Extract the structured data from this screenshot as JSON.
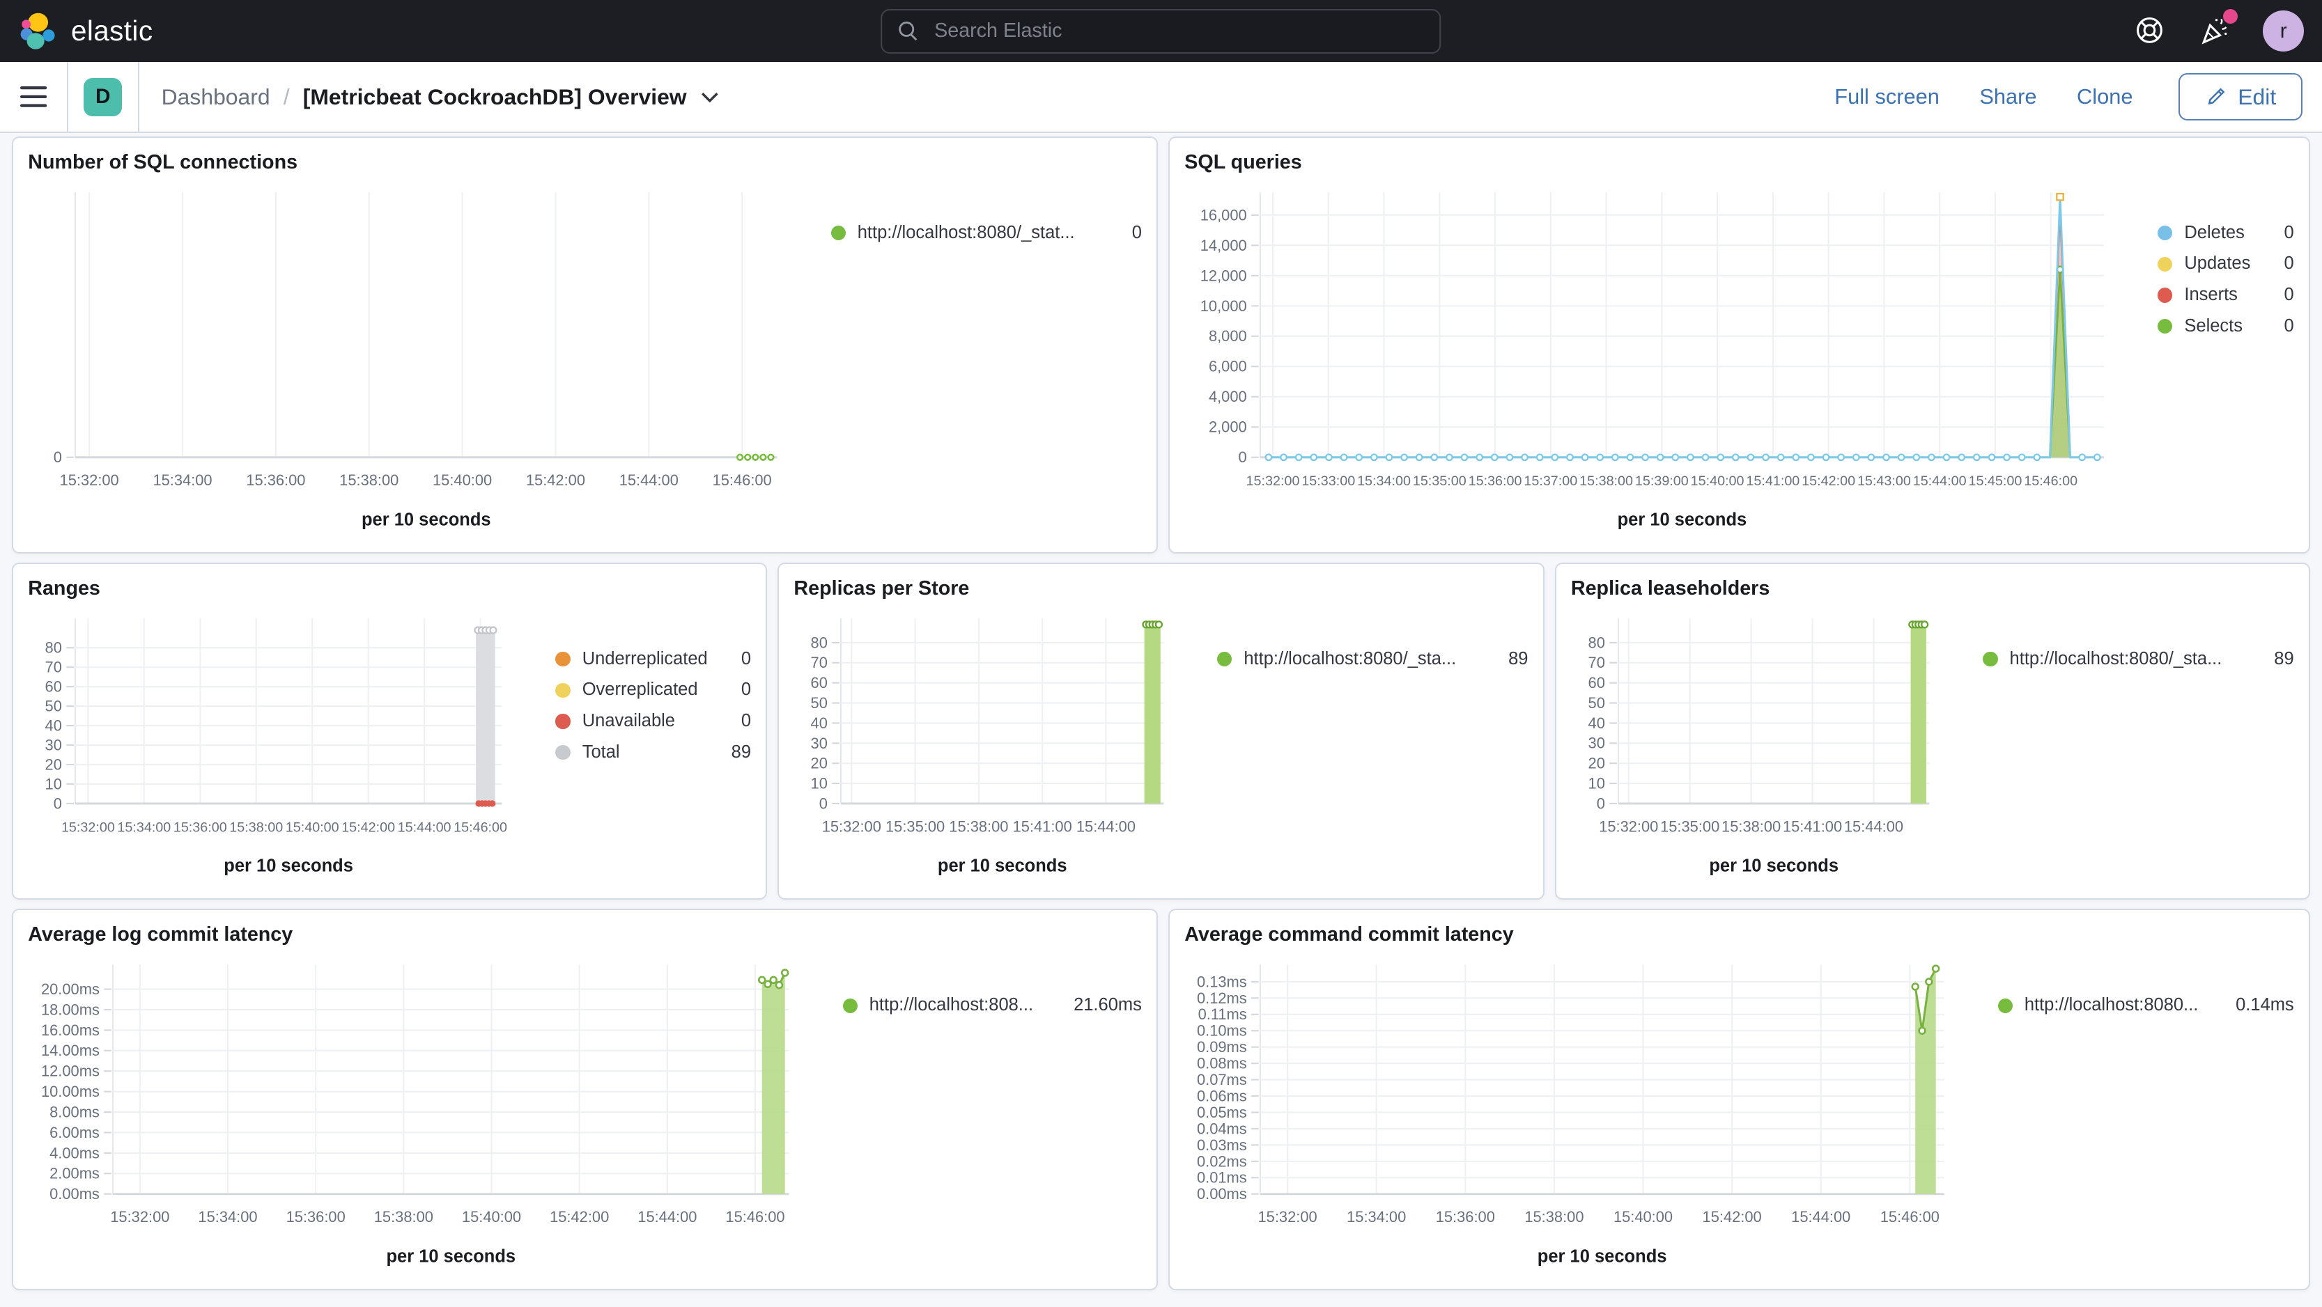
{
  "header": {
    "brand": "elastic",
    "search": {
      "placeholder": "Search Elastic"
    },
    "avatar_initial": "r",
    "colors": {
      "bar_bg": "#1D1E24",
      "avatar_bg": "#CDB3E3",
      "notification_dot": "#E7488C"
    }
  },
  "toolbar": {
    "space_badge": "D",
    "breadcrumb": {
      "root": "Dashboard",
      "current": "[Metricbeat CockroachDB] Overview"
    },
    "actions": {
      "full_screen": "Full screen",
      "share": "Share",
      "clone": "Clone",
      "edit": "Edit"
    },
    "link_color": "#3D72B0"
  },
  "chart_data": [
    {
      "id": "sql-connections",
      "title": "Number of SQL connections",
      "type": "line",
      "xlabel": "per 10 seconds",
      "x_ticks": [
        "15:32:00",
        "15:34:00",
        "15:36:00",
        "15:38:00",
        "15:40:00",
        "15:42:00",
        "15:44:00",
        "15:46:00"
      ],
      "x_start": 0.02,
      "x_end": 0.95,
      "y_ticks": [
        {
          "v": 0,
          "label": "0"
        }
      ],
      "y_max": 1,
      "grid": true,
      "legend": [
        {
          "label": "http://localhost:8080/_stat...",
          "value": "0",
          "color": "#77BB3F"
        }
      ],
      "series": [
        {
          "type": "line",
          "name": "sql-connections",
          "color": "#77BB3F",
          "dashed": true,
          "markers": true,
          "marker_r": 1.8,
          "stroke_width": 1.2,
          "points": [
            [
              0.947,
              0
            ],
            [
              0.958,
              0
            ],
            [
              0.969,
              0
            ],
            [
              0.98,
              0
            ],
            [
              0.991,
              0
            ]
          ]
        }
      ]
    },
    {
      "id": "sql-queries",
      "title": "SQL queries",
      "type": "area",
      "xlabel": "per 10 seconds",
      "x_ticks": [
        "15:32:00",
        "15:33:00",
        "15:34:00",
        "15:35:00",
        "15:36:00",
        "15:37:00",
        "15:38:00",
        "15:39:00",
        "15:40:00",
        "15:41:00",
        "15:42:00",
        "15:43:00",
        "15:44:00",
        "15:45:00",
        "15:46:00"
      ],
      "x_start": 0.015,
      "x_end": 0.937,
      "y_ticks": [
        {
          "v": 16000,
          "label": "16,000"
        },
        {
          "v": 14000,
          "label": "14,000"
        },
        {
          "v": 12000,
          "label": "12,000"
        },
        {
          "v": 10000,
          "label": "10,000"
        },
        {
          "v": 8000,
          "label": "8,000"
        },
        {
          "v": 6000,
          "label": "6,000"
        },
        {
          "v": 4000,
          "label": "4,000"
        },
        {
          "v": 2000,
          "label": "2,000"
        },
        {
          "v": 0,
          "label": "0"
        }
      ],
      "y_max": 17500,
      "grid": true,
      "legend": [
        {
          "label": "Deletes",
          "value": "0",
          "color": "#78C0E8"
        },
        {
          "label": "Updates",
          "value": "0",
          "color": "#EFD25C"
        },
        {
          "label": "Inserts",
          "value": "0",
          "color": "#DD5B4F"
        },
        {
          "label": "Selects",
          "value": "0",
          "color": "#77BB3F"
        }
      ],
      "series": [
        {
          "type": "area",
          "name": "Inserts-spike",
          "color": "#DD5B4F",
          "fill": "#EFA39B",
          "fill_opacity": 0.6,
          "stroke_width": 1.3,
          "points": [
            [
              0.936,
              0
            ],
            [
              0.948,
              16500
            ],
            [
              0.96,
              0
            ]
          ]
        },
        {
          "type": "area",
          "name": "Selects-spike",
          "color": "#77B13E",
          "fill": "#A8D077",
          "fill_opacity": 0.85,
          "stroke_width": 1.3,
          "points": [
            [
              0.936,
              0
            ],
            [
              0.948,
              12400
            ],
            [
              0.96,
              0
            ]
          ]
        },
        {
          "type": "line",
          "name": "Selects-peak-marker",
          "color": "#77B13E",
          "markers": true,
          "points": [
            [
              0.948,
              12400
            ]
          ]
        },
        {
          "type": "baseline-spike",
          "name": "Deletes-flatline",
          "color": "#7FC9E8",
          "from": 0.01,
          "to": 0.992,
          "marker_count": 56,
          "spike": {
            "x": 0.948,
            "v": 17200,
            "half_width": 0.012,
            "marker": "#E8B43D"
          }
        }
      ]
    },
    {
      "id": "ranges",
      "title": "Ranges",
      "type": "bar",
      "xlabel": "per 10 seconds",
      "x_ticks": [
        "15:32:00",
        "15:34:00",
        "15:36:00",
        "15:38:00",
        "15:40:00",
        "15:42:00",
        "15:44:00",
        "15:46:00"
      ],
      "x_start": 0.03,
      "x_end": 0.95,
      "y_ticks": [
        {
          "v": 80,
          "label": "80"
        },
        {
          "v": 70,
          "label": "70"
        },
        {
          "v": 60,
          "label": "60"
        },
        {
          "v": 50,
          "label": "50"
        },
        {
          "v": 40,
          "label": "40"
        },
        {
          "v": 30,
          "label": "30"
        },
        {
          "v": 20,
          "label": "20"
        },
        {
          "v": 10,
          "label": "10"
        },
        {
          "v": 0,
          "label": "0"
        }
      ],
      "y_max": 95,
      "grid": true,
      "legend": [
        {
          "label": "Underreplicated",
          "value": "0",
          "color": "#E8923A"
        },
        {
          "label": "Overreplicated",
          "value": "0",
          "color": "#EFD25C"
        },
        {
          "label": "Unavailable",
          "value": "0",
          "color": "#DD5B4F"
        },
        {
          "label": "Total",
          "value": "89",
          "color": "#C7CACF"
        }
      ],
      "series": [
        {
          "type": "bar",
          "name": "Total",
          "fill": "#DBDDE0",
          "center": 0.962,
          "width": 0.045,
          "value": 89,
          "top_markers": {
            "color": "#C2C5CA",
            "count": 5
          }
        },
        {
          "type": "dots",
          "name": "Unavailable",
          "color": "#DD5B4F",
          "center": 0.962,
          "width": 0.04,
          "count": 5,
          "value": 0
        }
      ]
    },
    {
      "id": "replicas-per-store",
      "title": "Replicas per Store",
      "type": "bar",
      "xlabel": "per 10 seconds",
      "x_ticks": [
        "15:32:00",
        "15:35:00",
        "15:38:00",
        "15:41:00",
        "15:44:00"
      ],
      "x_start": 0.033,
      "x_end": 0.821,
      "y_ticks": [
        {
          "v": 80,
          "label": "80"
        },
        {
          "v": 70,
          "label": "70"
        },
        {
          "v": 60,
          "label": "60"
        },
        {
          "v": 50,
          "label": "50"
        },
        {
          "v": 40,
          "label": "40"
        },
        {
          "v": 30,
          "label": "30"
        },
        {
          "v": 20,
          "label": "20"
        },
        {
          "v": 10,
          "label": "10"
        },
        {
          "v": 0,
          "label": "0"
        }
      ],
      "y_max": 92,
      "grid": true,
      "legend": [
        {
          "label": "http://localhost:8080/_sta...",
          "value": "89",
          "color": "#77BB3F"
        }
      ],
      "series": [
        {
          "type": "bar",
          "name": "replicas",
          "fill": "#B5D883",
          "center": 0.965,
          "width": 0.05,
          "value": 89,
          "top_markers": {
            "color": "#69A631",
            "count": 5
          }
        }
      ]
    },
    {
      "id": "replica-leaseholders",
      "title": "Replica leaseholders",
      "type": "bar",
      "xlabel": "per 10 seconds",
      "x_ticks": [
        "15:32:00",
        "15:35:00",
        "15:38:00",
        "15:41:00",
        "15:44:00"
      ],
      "x_start": 0.033,
      "x_end": 0.821,
      "y_ticks": [
        {
          "v": 80,
          "label": "80"
        },
        {
          "v": 70,
          "label": "70"
        },
        {
          "v": 60,
          "label": "60"
        },
        {
          "v": 50,
          "label": "50"
        },
        {
          "v": 40,
          "label": "40"
        },
        {
          "v": 30,
          "label": "30"
        },
        {
          "v": 20,
          "label": "20"
        },
        {
          "v": 10,
          "label": "10"
        },
        {
          "v": 0,
          "label": "0"
        }
      ],
      "y_max": 92,
      "grid": true,
      "legend": [
        {
          "label": "http://localhost:8080/_sta...",
          "value": "89",
          "color": "#77BB3F"
        }
      ],
      "series": [
        {
          "type": "bar",
          "name": "leaseholders",
          "fill": "#B5D883",
          "center": 0.965,
          "width": 0.05,
          "value": 89,
          "top_markers": {
            "color": "#69A631",
            "count": 5
          }
        }
      ]
    },
    {
      "id": "avg-log-commit-latency",
      "title": "Average log commit latency",
      "type": "area",
      "xlabel": "per 10 seconds",
      "x_ticks": [
        "15:32:00",
        "15:34:00",
        "15:36:00",
        "15:38:00",
        "15:40:00",
        "15:42:00",
        "15:44:00",
        "15:46:00"
      ],
      "x_start": 0.04,
      "x_end": 0.95,
      "y_ticks": [
        {
          "v": 20,
          "label": "20.00ms"
        },
        {
          "v": 18,
          "label": "18.00ms"
        },
        {
          "v": 16,
          "label": "16.00ms"
        },
        {
          "v": 14,
          "label": "14.00ms"
        },
        {
          "v": 12,
          "label": "12.00ms"
        },
        {
          "v": 10,
          "label": "10.00ms"
        },
        {
          "v": 8,
          "label": "8.00ms"
        },
        {
          "v": 6,
          "label": "6.00ms"
        },
        {
          "v": 4,
          "label": "4.00ms"
        },
        {
          "v": 2,
          "label": "2.00ms"
        },
        {
          "v": 0,
          "label": "0.00ms"
        }
      ],
      "y_max": 22.4,
      "grid": true,
      "legend": [
        {
          "label": "http://localhost:808...",
          "value": "21.60ms",
          "color": "#77BB3F"
        }
      ],
      "series": [
        {
          "type": "area",
          "name": "log-commit-latency",
          "color": "#77B13E",
          "fill": "#B7DA8B",
          "fill_opacity": 0.9,
          "markers": true,
          "stroke_width": 1.4,
          "points": [
            [
              0.96,
              20.9
            ],
            [
              0.9685,
              20.5
            ],
            [
              0.977,
              20.9
            ],
            [
              0.9855,
              20.4
            ],
            [
              0.994,
              21.6
            ]
          ]
        }
      ]
    },
    {
      "id": "avg-command-commit-latency",
      "title": "Average command commit latency",
      "type": "area",
      "xlabel": "per 10 seconds",
      "x_ticks": [
        "15:32:00",
        "15:34:00",
        "15:36:00",
        "15:38:00",
        "15:40:00",
        "15:42:00",
        "15:44:00",
        "15:46:00"
      ],
      "x_start": 0.04,
      "x_end": 0.95,
      "y_ticks": [
        {
          "v": 0.13,
          "label": "0.13ms"
        },
        {
          "v": 0.12,
          "label": "0.12ms"
        },
        {
          "v": 0.11,
          "label": "0.11ms"
        },
        {
          "v": 0.1,
          "label": "0.10ms"
        },
        {
          "v": 0.09,
          "label": "0.09ms"
        },
        {
          "v": 0.08,
          "label": "0.08ms"
        },
        {
          "v": 0.07,
          "label": "0.07ms"
        },
        {
          "v": 0.06,
          "label": "0.06ms"
        },
        {
          "v": 0.05,
          "label": "0.05ms"
        },
        {
          "v": 0.04,
          "label": "0.04ms"
        },
        {
          "v": 0.03,
          "label": "0.03ms"
        },
        {
          "v": 0.02,
          "label": "0.02ms"
        },
        {
          "v": 0.01,
          "label": "0.01ms"
        },
        {
          "v": 0,
          "label": "0.00ms"
        }
      ],
      "y_max": 0.1405,
      "grid": true,
      "legend": [
        {
          "label": "http://localhost:8080...",
          "value": "0.14ms",
          "color": "#77BB3F"
        }
      ],
      "series": [
        {
          "type": "area",
          "name": "command-commit-latency",
          "color": "#77B13E",
          "fill": "#B7DA8B",
          "fill_opacity": 0.9,
          "markers": true,
          "stroke_width": 1.4,
          "points": [
            [
              0.958,
              0.127
            ],
            [
              0.968,
              0.1
            ],
            [
              0.978,
              0.13
            ],
            [
              0.988,
              0.138
            ]
          ]
        }
      ]
    }
  ]
}
